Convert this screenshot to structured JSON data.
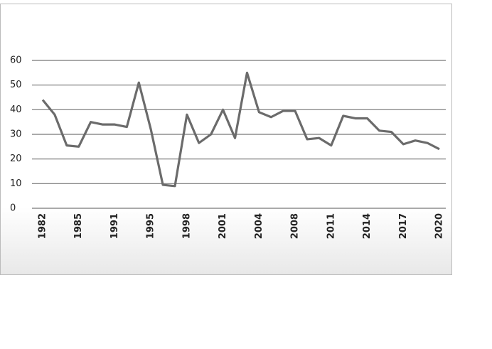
{
  "chart_data": {
    "type": "line",
    "categories": [
      "1982",
      null,
      null,
      "1985",
      null,
      null,
      "1991",
      null,
      null,
      "1995",
      null,
      null,
      "1998",
      null,
      null,
      "2001",
      null,
      null,
      "2004",
      null,
      null,
      "2008",
      null,
      null,
      "2011",
      null,
      null,
      "2014",
      null,
      null,
      "2017",
      null,
      null,
      "2020"
    ],
    "values": [
      44,
      38,
      25.5,
      25,
      35,
      34,
      34,
      33,
      51,
      32,
      9.5,
      9,
      38,
      26.5,
      30,
      40,
      28.5,
      55,
      39,
      37,
      39.5,
      39.5,
      28,
      28.5,
      25.5,
      37.5,
      36.5,
      36.5,
      31.5,
      31,
      26,
      27.5,
      26.5,
      24
    ],
    "color": "#6b6b6b",
    "ylim": [
      0,
      60
    ],
    "yticks": [
      0,
      10,
      20,
      30,
      40,
      50,
      60
    ],
    "grid": true
  }
}
